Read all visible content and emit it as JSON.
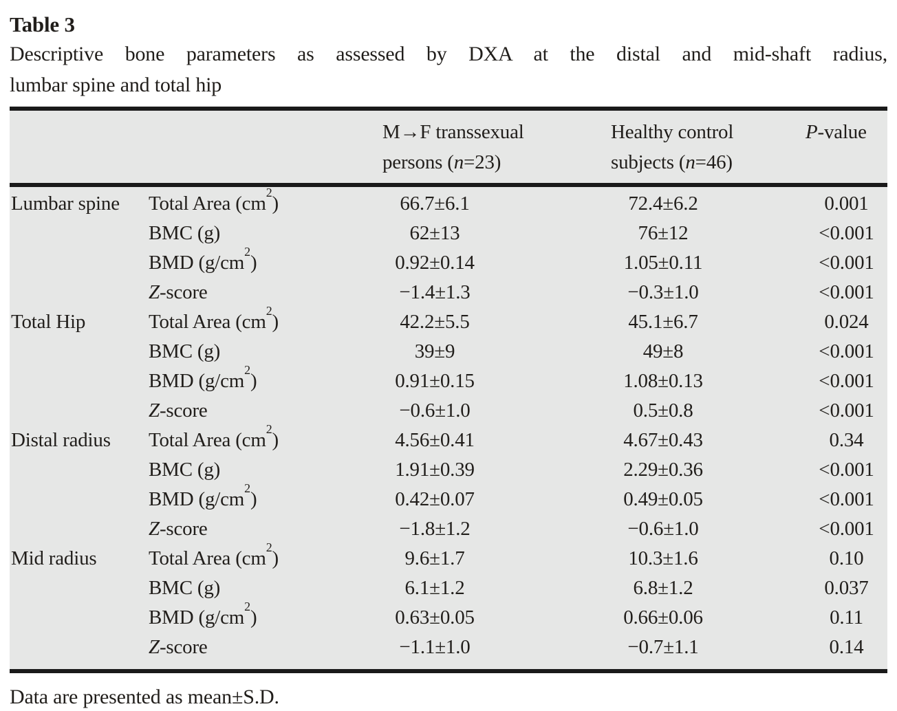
{
  "title": "Table 3",
  "caption": {
    "line1": "Descriptive bone parameters as assessed by DXA at the distal and mid-shaft radius,",
    "line2": "lumbar spine and total hip"
  },
  "table": {
    "columns": [
      {
        "id": "region",
        "label": ""
      },
      {
        "id": "parameter",
        "label": ""
      },
      {
        "id": "mtf",
        "line1": "M→F transsexual",
        "line2_pre": "persons (",
        "line2_italic": "n",
        "line2_post": "=23)"
      },
      {
        "id": "control",
        "line1": "Healthy control",
        "line2_pre": "subjects (",
        "line2_italic": "n",
        "line2_post": "=46)"
      },
      {
        "id": "pvalue",
        "italic": "P",
        "post": "-value"
      }
    ],
    "groups": [
      {
        "region": "Lumbar spine",
        "rows": [
          {
            "parameter": {
              "lead_italic": "",
              "text": "Total Area (cm",
              "sup": "2",
              "tail": ")"
            },
            "mtf": "66.7±6.1",
            "control": "72.4±6.2",
            "p": "0.001"
          },
          {
            "parameter": {
              "lead_italic": "",
              "text": "BMC (g)",
              "sup": "",
              "tail": ""
            },
            "mtf": "62±13",
            "control": "76±12",
            "p": "<0.001"
          },
          {
            "parameter": {
              "lead_italic": "",
              "text": "BMD (g/cm",
              "sup": "2",
              "tail": ")"
            },
            "mtf": "0.92±0.14",
            "control": "1.05±0.11",
            "p": "<0.001"
          },
          {
            "parameter": {
              "lead_italic": "Z",
              "text": "-score",
              "sup": "",
              "tail": ""
            },
            "mtf": "−1.4±1.3",
            "control": "−0.3±1.0",
            "p": "<0.001"
          }
        ]
      },
      {
        "region": "Total Hip",
        "rows": [
          {
            "parameter": {
              "lead_italic": "",
              "text": "Total Area (cm",
              "sup": "2",
              "tail": ")"
            },
            "mtf": "42.2±5.5",
            "control": "45.1±6.7",
            "p": "0.024"
          },
          {
            "parameter": {
              "lead_italic": "",
              "text": "BMC (g)",
              "sup": "",
              "tail": ""
            },
            "mtf": "39±9",
            "control": "49±8",
            "p": "<0.001"
          },
          {
            "parameter": {
              "lead_italic": "",
              "text": "BMD (g/cm",
              "sup": "2",
              "tail": ")"
            },
            "mtf": "0.91±0.15",
            "control": "1.08±0.13",
            "p": "<0.001"
          },
          {
            "parameter": {
              "lead_italic": "Z",
              "text": "-score",
              "sup": "",
              "tail": ""
            },
            "mtf": "−0.6±1.0",
            "control": "0.5±0.8",
            "p": "<0.001"
          }
        ]
      },
      {
        "region": "Distal radius",
        "rows": [
          {
            "parameter": {
              "lead_italic": "",
              "text": "Total Area (cm",
              "sup": "2",
              "tail": ")"
            },
            "mtf": "4.56±0.41",
            "control": "4.67±0.43",
            "p": "0.34"
          },
          {
            "parameter": {
              "lead_italic": "",
              "text": "BMC (g)",
              "sup": "",
              "tail": ""
            },
            "mtf": "1.91±0.39",
            "control": "2.29±0.36",
            "p": "<0.001"
          },
          {
            "parameter": {
              "lead_italic": "",
              "text": "BMD (g/cm",
              "sup": "2",
              "tail": ")"
            },
            "mtf": "0.42±0.07",
            "control": "0.49±0.05",
            "p": "<0.001"
          },
          {
            "parameter": {
              "lead_italic": "Z",
              "text": "-score",
              "sup": "",
              "tail": ""
            },
            "mtf": "−1.8±1.2",
            "control": "−0.6±1.0",
            "p": "<0.001"
          }
        ]
      },
      {
        "region": "Mid radius",
        "rows": [
          {
            "parameter": {
              "lead_italic": "",
              "text": "Total Area (cm",
              "sup": "2",
              "tail": ")"
            },
            "mtf": "9.6±1.7",
            "control": "10.3±1.6",
            "p": "0.10"
          },
          {
            "parameter": {
              "lead_italic": "",
              "text": "BMC (g)",
              "sup": "",
              "tail": ""
            },
            "mtf": "6.1±1.2",
            "control": "6.8±1.2",
            "p": "0.037"
          },
          {
            "parameter": {
              "lead_italic": "",
              "text": "BMD (g/cm",
              "sup": "2",
              "tail": ")"
            },
            "mtf": "0.63±0.05",
            "control": "0.66±0.06",
            "p": "0.11"
          },
          {
            "parameter": {
              "lead_italic": "Z",
              "text": "-score",
              "sup": "",
              "tail": ""
            },
            "mtf": "−1.1±1.0",
            "control": "−0.7±1.1",
            "p": "0.14"
          }
        ]
      }
    ]
  },
  "footnote": "Data are presented as mean±S.D.",
  "colors": {
    "page_bg": "#ffffff",
    "table_bg": "#e6e7e6",
    "rule": "#1a1a1a",
    "ink": "#211e1b"
  }
}
